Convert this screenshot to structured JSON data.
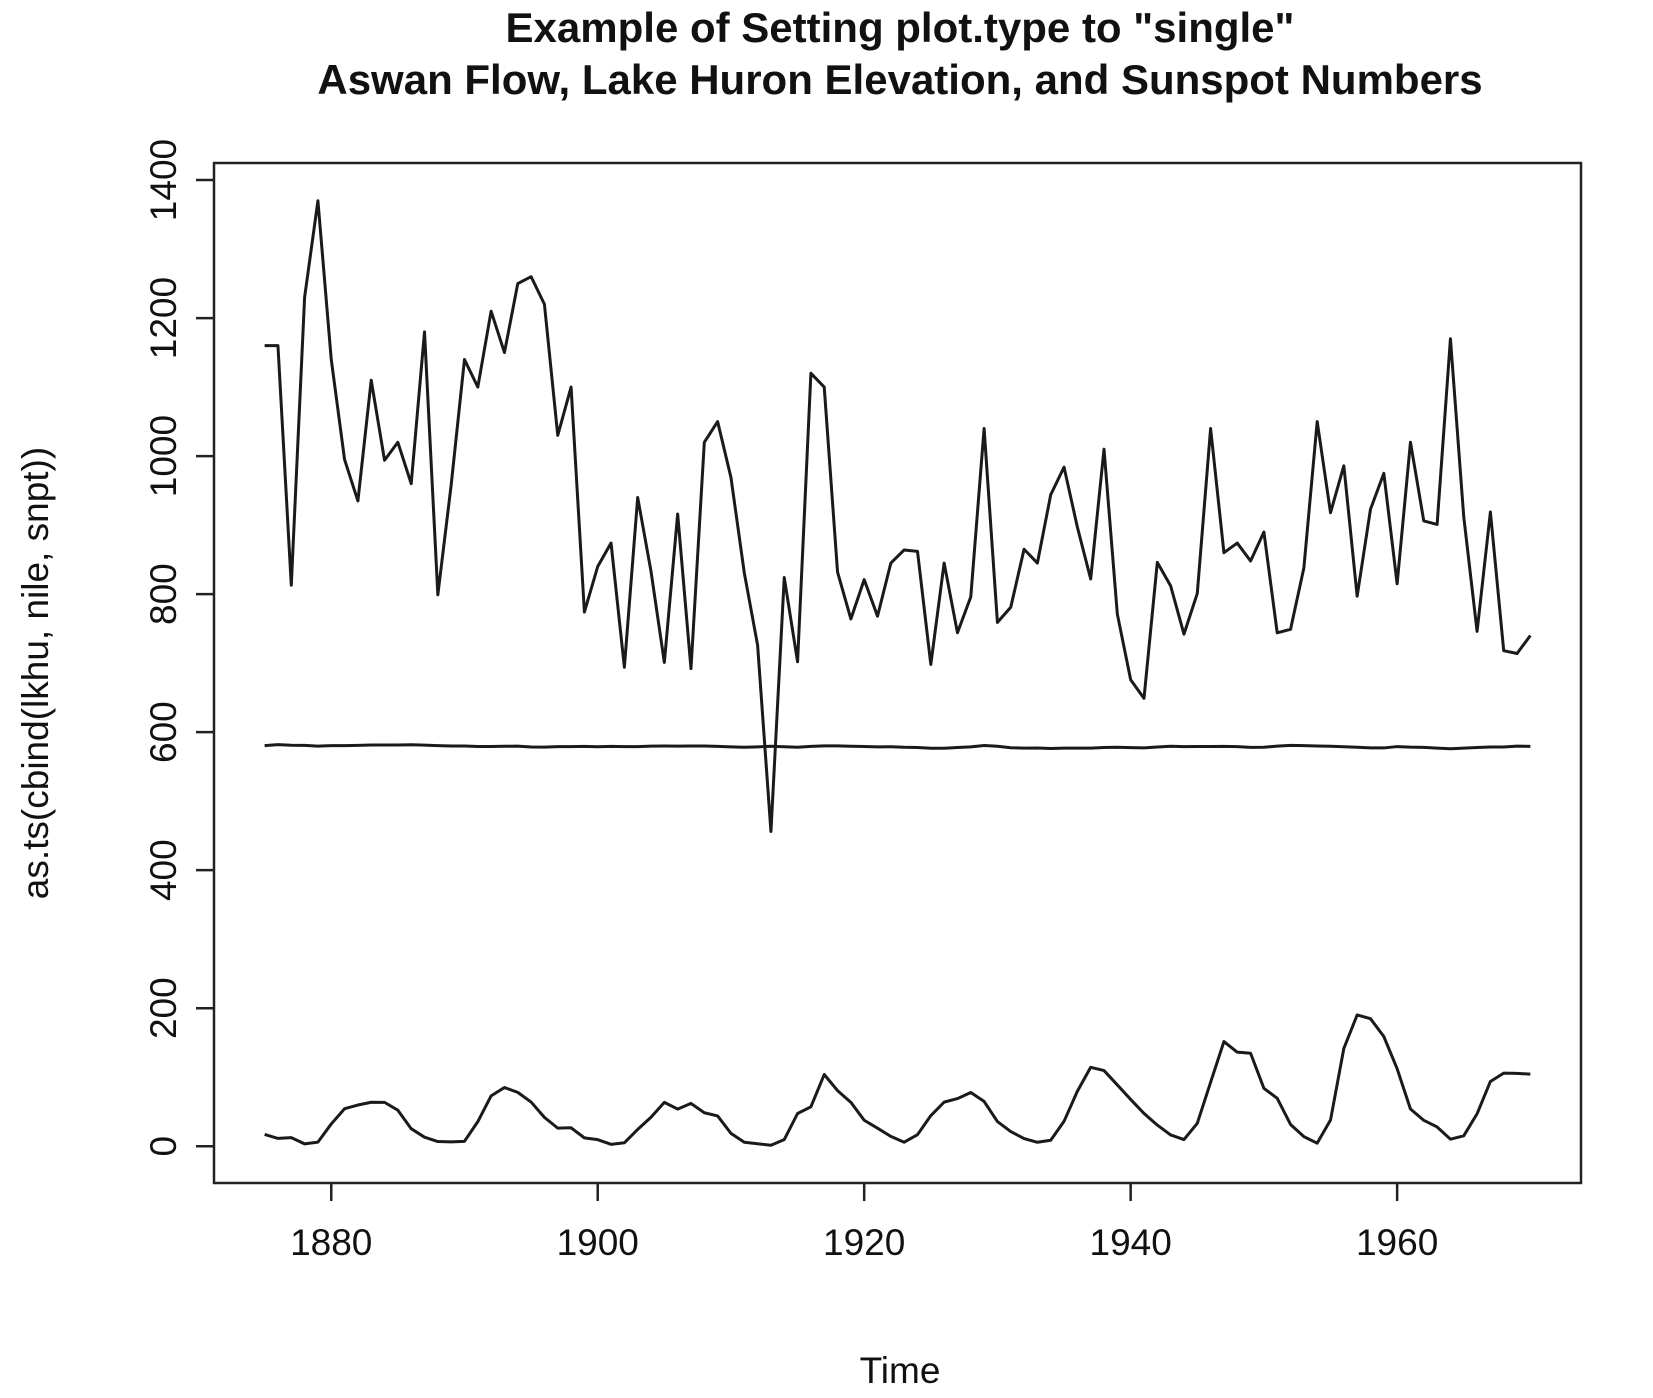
{
  "chart_data": {
    "type": "line",
    "title": "Example of Setting plot.type to \"single\"",
    "subtitle": "Aswan Flow, Lake Huron Elevation, and Sunspot Numbers",
    "x_label": "Time",
    "y_label": "as.ts(cbind(lkhu, nile, snpt))",
    "x": [
      1875,
      1876,
      1877,
      1878,
      1879,
      1880,
      1881,
      1882,
      1883,
      1884,
      1885,
      1886,
      1887,
      1888,
      1889,
      1890,
      1891,
      1892,
      1893,
      1894,
      1895,
      1896,
      1897,
      1898,
      1899,
      1900,
      1901,
      1902,
      1903,
      1904,
      1905,
      1906,
      1907,
      1908,
      1909,
      1910,
      1911,
      1912,
      1913,
      1914,
      1915,
      1916,
      1917,
      1918,
      1919,
      1920,
      1921,
      1922,
      1923,
      1924,
      1925,
      1926,
      1927,
      1928,
      1929,
      1930,
      1931,
      1932,
      1933,
      1934,
      1935,
      1936,
      1937,
      1938,
      1939,
      1940,
      1941,
      1942,
      1943,
      1944,
      1945,
      1946,
      1947,
      1948,
      1949,
      1950,
      1951,
      1952,
      1953,
      1954,
      1955,
      1956,
      1957,
      1958,
      1959,
      1960,
      1961,
      1962,
      1963,
      1964,
      1965,
      1966,
      1967,
      1968,
      1969,
      1970
    ],
    "series": [
      {
        "color": "#1a1a1a",
        "values": [
          580.38,
          581.86,
          580.97,
          580.8,
          579.79,
          580.39,
          580.42,
          580.82,
          581.4,
          581.32,
          581.44,
          581.68,
          581.17,
          580.53,
          580.01,
          579.91,
          579.14,
          579.16,
          579.55,
          579.67,
          578.44,
          578.24,
          579.1,
          579.09,
          579.35,
          578.82,
          579.32,
          579.01,
          579.0,
          579.8,
          579.83,
          579.72,
          579.89,
          580.01,
          579.37,
          578.69,
          578.19,
          578.67,
          579.55,
          578.92,
          578.09,
          579.37,
          580.13,
          580.14,
          579.51,
          579.24,
          578.66,
          578.86,
          578.05,
          577.79,
          576.75,
          576.75,
          577.82,
          578.64,
          580.58,
          579.48,
          577.38,
          576.9,
          576.94,
          576.24,
          576.84,
          576.85,
          576.9,
          577.79,
          578.18,
          577.51,
          577.23,
          578.42,
          579.61,
          579.05,
          579.26,
          579.22,
          579.38,
          579.1,
          577.95,
          578.12,
          579.75,
          580.85,
          580.41,
          579.96,
          579.61,
          578.76,
          578.18,
          577.21,
          577.13,
          579.1,
          578.25,
          577.91,
          576.89,
          575.96,
          576.8,
          577.68,
          578.38,
          578.52,
          579.74,
          579.31
        ]
      },
      {
        "color": "#1a1a1a",
        "values": [
          1160,
          1160,
          813,
          1230,
          1370,
          1140,
          995,
          935,
          1110,
          994,
          1020,
          960,
          1180,
          799,
          958,
          1140,
          1100,
          1210,
          1150,
          1250,
          1260,
          1220,
          1030,
          1100,
          774,
          840,
          874,
          694,
          940,
          833,
          701,
          916,
          692,
          1020,
          1050,
          969,
          831,
          726,
          456,
          824,
          702,
          1120,
          1100,
          832,
          764,
          821,
          768,
          845,
          864,
          862,
          698,
          845,
          744,
          796,
          1040,
          759,
          781,
          865,
          845,
          944,
          984,
          897,
          822,
          1010,
          771,
          676,
          649,
          846,
          812,
          742,
          801,
          1040,
          860,
          874,
          848,
          890,
          744,
          749,
          838,
          1050,
          918,
          986,
          797,
          923,
          975,
          815,
          1020,
          906,
          901,
          1170,
          912,
          746,
          919,
          718,
          714,
          740
        ]
      },
      {
        "color": "#1a1a1a",
        "values": [
          17.0,
          11.3,
          12.4,
          3.4,
          6.0,
          32.3,
          54.3,
          59.7,
          63.7,
          63.5,
          52.2,
          25.4,
          13.1,
          6.8,
          6.3,
          7.1,
          35.6,
          73.0,
          85.1,
          78.0,
          64.0,
          41.8,
          26.2,
          26.7,
          12.1,
          9.5,
          2.7,
          5.0,
          24.4,
          42.0,
          63.5,
          53.8,
          62.0,
          48.5,
          43.9,
          18.6,
          5.7,
          3.6,
          1.4,
          9.6,
          47.4,
          57.1,
          103.9,
          80.6,
          63.6,
          37.6,
          26.1,
          14.2,
          5.8,
          16.7,
          44.3,
          63.9,
          69.0,
          77.8,
          64.9,
          35.7,
          21.2,
          11.1,
          5.7,
          8.7,
          36.1,
          79.7,
          114.4,
          109.6,
          88.8,
          67.8,
          47.5,
          30.6,
          16.3,
          9.6,
          33.2,
          92.6,
          151.6,
          136.3,
          134.7,
          83.9,
          69.4,
          31.5,
          13.9,
          4.4,
          38.0,
          141.7,
          190.2,
          184.8,
          159.0,
          112.3,
          53.9,
          37.5,
          27.9,
          10.2,
          15.1,
          47.0,
          93.8,
          105.9,
          105.5,
          104.5
        ]
      }
    ],
    "xlim": [
      1871.2,
      1973.8
    ],
    "xticks": [
      1880,
      1900,
      1920,
      1940,
      1960
    ],
    "ylim": [
      -53.3,
      1424.7
    ],
    "yticks": [
      0,
      200,
      400,
      600,
      800,
      1000,
      1200,
      1400
    ],
    "grid": false
  }
}
